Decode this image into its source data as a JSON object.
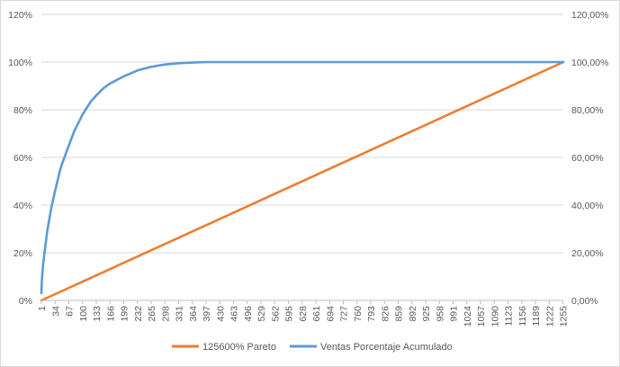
{
  "chart_data": {
    "type": "line",
    "x_tick_labels": [
      "1",
      "34",
      "67",
      "100",
      "133",
      "166",
      "199",
      "232",
      "265",
      "298",
      "331",
      "364",
      "397",
      "430",
      "463",
      "496",
      "529",
      "562",
      "595",
      "628",
      "661",
      "694",
      "727",
      "760",
      "793",
      "826",
      "859",
      "892",
      "925",
      "958",
      "991",
      "1024",
      "1057",
      "1090",
      "1123",
      "1156",
      "1189",
      "1222",
      "1255"
    ],
    "x_range": [
      1,
      1256
    ],
    "y_left": {
      "ticks": [
        "0%",
        "20%",
        "40%",
        "60%",
        "80%",
        "100%",
        "120%"
      ],
      "range": [
        0,
        1.2
      ]
    },
    "y_right": {
      "ticks": [
        "0,00%",
        "20,00%",
        "40,00%",
        "60,00%",
        "80,00%",
        "100,00%",
        "120,00%"
      ],
      "range": [
        0,
        1.2
      ]
    },
    "grid": "horizontal",
    "legend_position": "bottom",
    "series": [
      {
        "name": "125600% Pareto",
        "color": "#ed7d31",
        "points": [
          [
            1,
            0.0
          ],
          [
            1256,
            1.0
          ]
        ]
      },
      {
        "name": "Ventas Porcentaje Acumulado",
        "color": "#5b9bd5",
        "points": [
          [
            1,
            0.03
          ],
          [
            2,
            0.08
          ],
          [
            5,
            0.15
          ],
          [
            10,
            0.22
          ],
          [
            15,
            0.29
          ],
          [
            20,
            0.34
          ],
          [
            25,
            0.39
          ],
          [
            34,
            0.46
          ],
          [
            45,
            0.54
          ],
          [
            50,
            0.57
          ],
          [
            67,
            0.65
          ],
          [
            80,
            0.71
          ],
          [
            100,
            0.78
          ],
          [
            120,
            0.835
          ],
          [
            133,
            0.86
          ],
          [
            150,
            0.89
          ],
          [
            166,
            0.91
          ],
          [
            199,
            0.94
          ],
          [
            232,
            0.965
          ],
          [
            265,
            0.98
          ],
          [
            298,
            0.99
          ],
          [
            331,
            0.995
          ],
          [
            364,
            0.998
          ],
          [
            397,
            1.0
          ],
          [
            1256,
            1.0
          ]
        ]
      }
    ]
  }
}
